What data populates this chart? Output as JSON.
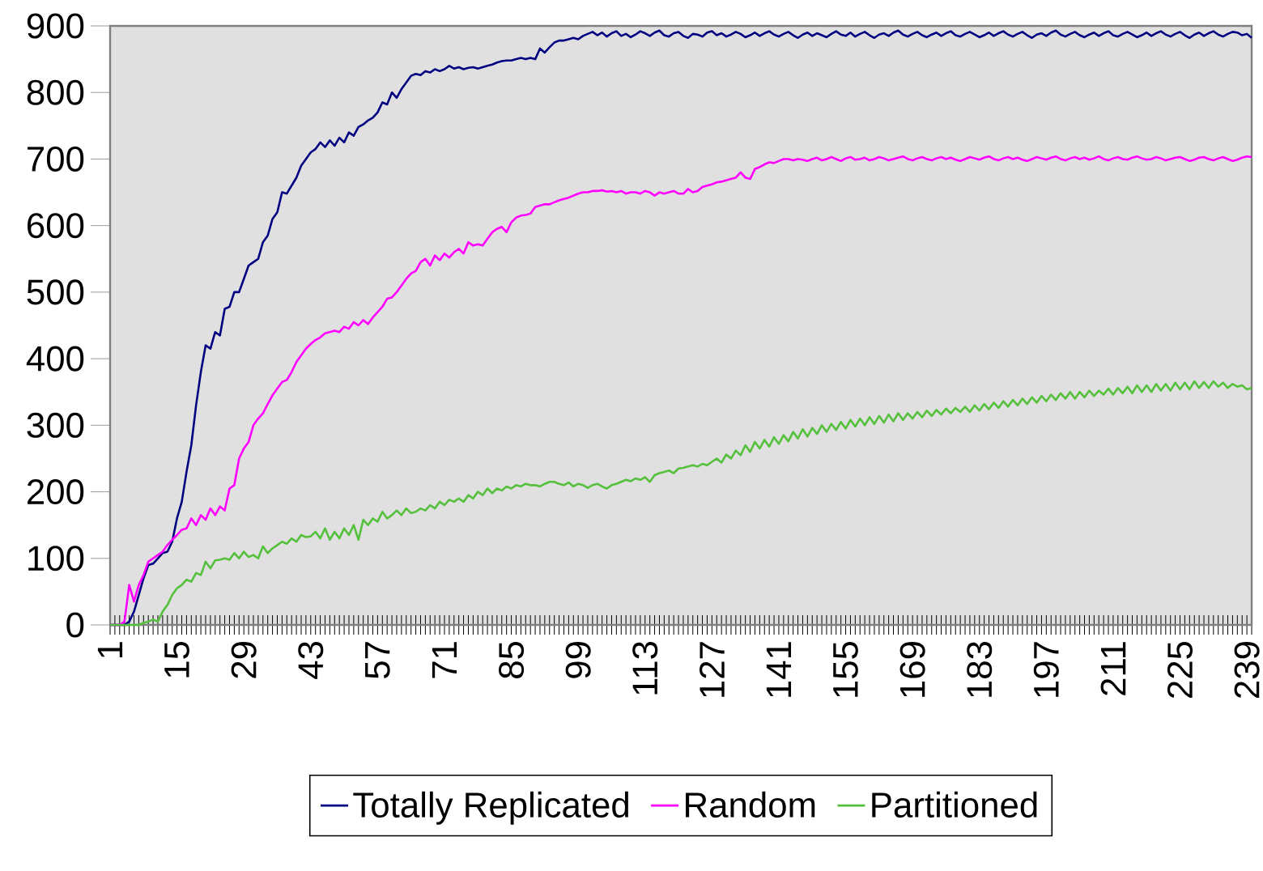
{
  "chart_data": {
    "type": "line",
    "legend": "bottom",
    "grid": false,
    "line_style": "solid",
    "ylim": [
      0,
      900
    ],
    "yticks": [
      0,
      100,
      200,
      300,
      400,
      500,
      600,
      700,
      800,
      900
    ],
    "categories": [
      "1",
      null,
      null,
      null,
      null,
      null,
      null,
      null,
      null,
      null,
      null,
      null,
      null,
      null,
      "15",
      null,
      null,
      null,
      null,
      null,
      null,
      null,
      null,
      null,
      null,
      null,
      null,
      null,
      "29",
      null,
      null,
      null,
      null,
      null,
      null,
      null,
      null,
      null,
      null,
      null,
      null,
      null,
      "43",
      null,
      null,
      null,
      null,
      null,
      null,
      null,
      null,
      null,
      null,
      null,
      null,
      null,
      "57",
      null,
      null,
      null,
      null,
      null,
      null,
      null,
      null,
      null,
      null,
      null,
      null,
      null,
      "71",
      null,
      null,
      null,
      null,
      null,
      null,
      null,
      null,
      null,
      null,
      null,
      null,
      null,
      "85",
      null,
      null,
      null,
      null,
      null,
      null,
      null,
      null,
      null,
      null,
      null,
      null,
      null,
      "99",
      null,
      null,
      null,
      null,
      null,
      null,
      null,
      null,
      null,
      null,
      null,
      null,
      null,
      "113",
      null,
      null,
      null,
      null,
      null,
      null,
      null,
      null,
      null,
      null,
      null,
      null,
      null,
      "127",
      null,
      null,
      null,
      null,
      null,
      null,
      null,
      null,
      null,
      null,
      null,
      null,
      null,
      "141",
      null,
      null,
      null,
      null,
      null,
      null,
      null,
      null,
      null,
      null,
      null,
      null,
      null,
      "155",
      null,
      null,
      null,
      null,
      null,
      null,
      null,
      null,
      null,
      null,
      null,
      null,
      null,
      "169",
      null,
      null,
      null,
      null,
      null,
      null,
      null,
      null,
      null,
      null,
      null,
      null,
      null,
      "183",
      null,
      null,
      null,
      null,
      null,
      null,
      null,
      null,
      null,
      null,
      null,
      null,
      null,
      "197",
      null,
      null,
      null,
      null,
      null,
      null,
      null,
      null,
      null,
      null,
      null,
      null,
      null,
      "211",
      null,
      null,
      null,
      null,
      null,
      null,
      null,
      null,
      null,
      null,
      null,
      null,
      null,
      "225",
      null,
      null,
      null,
      null,
      null,
      null,
      null,
      null,
      null,
      null,
      null,
      null,
      null,
      "239",
      null
    ],
    "series": [
      {
        "name": "Totally Replicated",
        "color": "#000080",
        "values": [
          0,
          0,
          0,
          0,
          5,
          20,
          45,
          70,
          90,
          92,
          100,
          108,
          110,
          125,
          160,
          185,
          230,
          270,
          330,
          380,
          420,
          415,
          440,
          435,
          475,
          478,
          500,
          500,
          520,
          540,
          545,
          550,
          575,
          585,
          610,
          620,
          650,
          648,
          660,
          672,
          690,
          700,
          710,
          715,
          725,
          718,
          728,
          720,
          732,
          725,
          740,
          735,
          748,
          752,
          758,
          762,
          770,
          785,
          782,
          800,
          792,
          805,
          815,
          825,
          828,
          826,
          832,
          830,
          835,
          832,
          835,
          840,
          836,
          838,
          835,
          837,
          838,
          836,
          838,
          840,
          842,
          845,
          847,
          848,
          848,
          850,
          852,
          850,
          852,
          850,
          866,
          860,
          868,
          875,
          878,
          878,
          880,
          882,
          880,
          885,
          888,
          891,
          886,
          890,
          884,
          889,
          892,
          885,
          888,
          883,
          887,
          892,
          889,
          885,
          890,
          893,
          886,
          884,
          889,
          891,
          885,
          882,
          888,
          887,
          884,
          890,
          892,
          886,
          889,
          884,
          887,
          891,
          888,
          883,
          886,
          890,
          885,
          889,
          892,
          887,
          884,
          888,
          891,
          886,
          882,
          887,
          890,
          885,
          889,
          886,
          883,
          888,
          892,
          887,
          885,
          890,
          884,
          888,
          891,
          886,
          882,
          887,
          889,
          885,
          890,
          893,
          887,
          884,
          888,
          891,
          886,
          883,
          887,
          890,
          885,
          889,
          892,
          886,
          884,
          888,
          891,
          887,
          883,
          886,
          890,
          885,
          889,
          892,
          887,
          884,
          888,
          891,
          886,
          882,
          887,
          889,
          885,
          890,
          893,
          887,
          884,
          888,
          891,
          886,
          883,
          887,
          890,
          885,
          889,
          892,
          886,
          884,
          888,
          891,
          887,
          883,
          886,
          890,
          885,
          889,
          892,
          887,
          884,
          888,
          891,
          886,
          882,
          887,
          890,
          885,
          889,
          892,
          887,
          884,
          888,
          891,
          890,
          886,
          888,
          882
        ]
      },
      {
        "name": "Random",
        "color": "#ff00ff",
        "values": [
          0,
          0,
          0,
          5,
          60,
          35,
          60,
          75,
          95,
          100,
          105,
          110,
          120,
          128,
          135,
          143,
          145,
          160,
          150,
          165,
          158,
          175,
          165,
          178,
          172,
          205,
          210,
          250,
          265,
          275,
          300,
          310,
          318,
          332,
          345,
          355,
          365,
          368,
          380,
          395,
          405,
          415,
          422,
          428,
          432,
          438,
          440,
          442,
          440,
          448,
          445,
          455,
          450,
          458,
          452,
          462,
          470,
          478,
          490,
          492,
          500,
          510,
          520,
          528,
          532,
          545,
          550,
          540,
          555,
          548,
          558,
          552,
          560,
          565,
          558,
          575,
          570,
          572,
          570,
          580,
          590,
          595,
          598,
          590,
          605,
          612,
          615,
          616,
          618,
          628,
          630,
          632,
          632,
          635,
          638,
          640,
          642,
          645,
          648,
          650,
          650,
          652,
          652,
          653,
          651,
          652,
          650,
          652,
          648,
          650,
          650,
          648,
          652,
          650,
          645,
          650,
          648,
          650,
          652,
          648,
          648,
          655,
          650,
          652,
          658,
          660,
          662,
          665,
          666,
          668,
          670,
          672,
          680,
          672,
          670,
          685,
          688,
          692,
          695,
          694,
          697,
          700,
          700,
          698,
          700,
          699,
          697,
          700,
          702,
          698,
          700,
          703,
          700,
          697,
          701,
          703,
          699,
          700,
          702,
          698,
          700,
          703,
          701,
          698,
          700,
          702,
          704,
          700,
          698,
          701,
          703,
          700,
          698,
          701,
          703,
          700,
          702,
          699,
          697,
          700,
          703,
          701,
          699,
          702,
          704,
          700,
          698,
          701,
          703,
          700,
          702,
          699,
          697,
          700,
          703,
          701,
          699,
          702,
          704,
          700,
          698,
          701,
          703,
          700,
          702,
          699,
          701,
          704,
          700,
          698,
          701,
          703,
          700,
          699,
          702,
          704,
          701,
          699,
          700,
          703,
          701,
          698,
          700,
          702,
          703,
          700,
          697,
          699,
          702,
          703,
          700,
          698,
          701,
          703,
          700,
          697,
          699,
          702,
          704,
          703
        ]
      },
      {
        "name": "Partitioned",
        "color": "#55c03c",
        "values": [
          0,
          0,
          0,
          0,
          0,
          0,
          0,
          3,
          5,
          8,
          5,
          20,
          30,
          45,
          55,
          60,
          68,
          65,
          78,
          75,
          95,
          85,
          97,
          98,
          100,
          98,
          108,
          100,
          110,
          102,
          105,
          100,
          118,
          108,
          115,
          120,
          125,
          122,
          130,
          125,
          135,
          132,
          133,
          140,
          130,
          145,
          128,
          140,
          130,
          145,
          135,
          150,
          128,
          158,
          150,
          160,
          155,
          170,
          160,
          165,
          172,
          165,
          175,
          168,
          170,
          175,
          172,
          180,
          175,
          185,
          180,
          188,
          185,
          190,
          185,
          195,
          190,
          200,
          195,
          205,
          198,
          205,
          202,
          208,
          205,
          210,
          208,
          212,
          210,
          210,
          208,
          212,
          215,
          215,
          212,
          210,
          214,
          208,
          212,
          210,
          206,
          210,
          212,
          208,
          205,
          210,
          212,
          215,
          218,
          216,
          220,
          218,
          222,
          215,
          225,
          228,
          230,
          232,
          228,
          235,
          236,
          238,
          240,
          238,
          242,
          240,
          245,
          250,
          244,
          256,
          250,
          262,
          255,
          270,
          260,
          275,
          265,
          278,
          268,
          282,
          272,
          285,
          276,
          290,
          280,
          294,
          283,
          296,
          287,
          300,
          290,
          302,
          293,
          305,
          295,
          308,
          298,
          310,
          300,
          312,
          302,
          314,
          304,
          316,
          306,
          318,
          308,
          318,
          310,
          320,
          312,
          322,
          314,
          323,
          316,
          325,
          318,
          326,
          320,
          328,
          320,
          330,
          322,
          332,
          324,
          334,
          326,
          336,
          328,
          338,
          330,
          340,
          332,
          342,
          334,
          344,
          336,
          346,
          338,
          348,
          340,
          350,
          340,
          350,
          342,
          352,
          344,
          352,
          346,
          355,
          346,
          356,
          348,
          358,
          348,
          360,
          350,
          360,
          350,
          362,
          352,
          362,
          352,
          364,
          354,
          364,
          354,
          366,
          356,
          365,
          356,
          366,
          358,
          364,
          356,
          362,
          358,
          360,
          354,
          356
        ]
      }
    ]
  }
}
